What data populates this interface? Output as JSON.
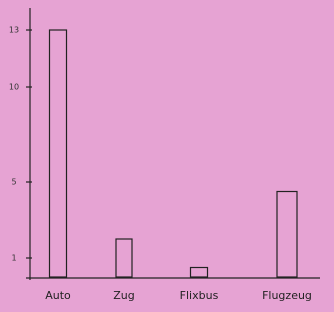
{
  "chart_data": {
    "type": "bar",
    "categories": [
      "Auto",
      "Zug",
      "Flixbus",
      "Flugzeug"
    ],
    "values": [
      13,
      2,
      0.5,
      4.5
    ],
    "color": "#222222",
    "ylim": [
      0,
      14
    ],
    "yticks": [
      1,
      5,
      10,
      13
    ],
    "grid": false
  }
}
